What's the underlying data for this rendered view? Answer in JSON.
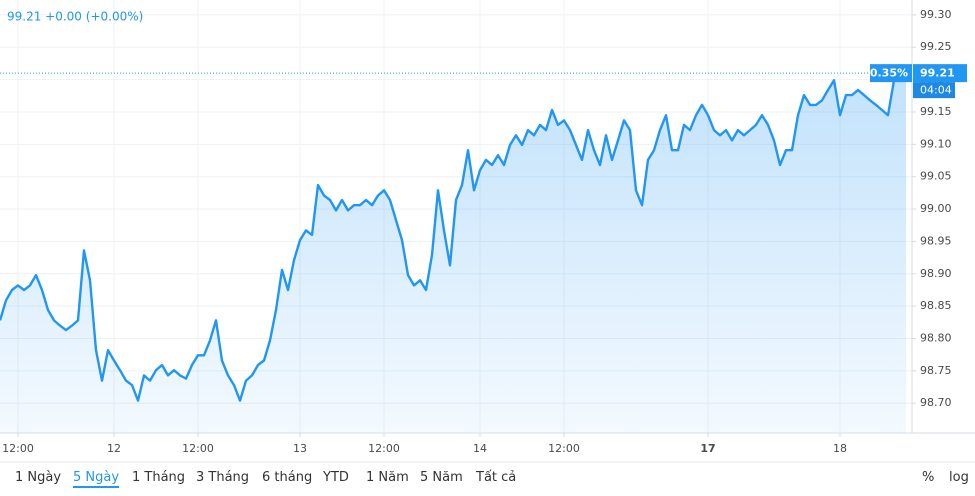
{
  "chart_data": {
    "type": "line",
    "title": "99.21 +0.00 (+0.00%)",
    "series": [
      {
        "color": "#2196f3",
        "values": [
          98.828,
          98.859,
          98.875,
          98.882,
          98.875,
          98.882,
          98.898,
          98.875,
          98.844,
          98.828,
          98.82,
          98.813,
          98.82,
          98.828,
          98.936,
          98.89,
          98.782,
          98.735,
          98.782,
          98.766,
          98.751,
          98.735,
          98.728,
          98.704,
          98.743,
          98.735,
          98.751,
          98.759,
          98.743,
          98.751,
          98.743,
          98.738,
          98.759,
          98.774,
          98.774,
          98.797,
          98.828,
          98.766,
          98.743,
          98.728,
          98.704,
          98.735,
          98.743,
          98.759,
          98.766,
          98.797,
          98.844,
          98.906,
          98.875,
          98.921,
          98.952,
          98.967,
          98.96,
          99.037,
          99.021,
          99.014,
          98.998,
          99.014,
          98.998,
          99.006,
          99.006,
          99.014,
          99.006,
          99.021,
          99.029,
          99.014,
          98.983,
          98.952,
          98.898,
          98.882,
          98.89,
          98.875,
          98.929,
          99.029,
          98.967,
          98.913,
          99.014,
          99.037,
          99.091,
          99.029,
          99.06,
          99.076,
          99.068,
          99.083,
          99.068,
          99.099,
          99.114,
          99.099,
          99.122,
          99.114,
          99.13,
          99.122,
          99.153,
          99.13,
          99.137,
          99.122,
          99.099,
          99.076,
          99.122,
          99.091,
          99.068,
          99.114,
          99.076,
          99.106,
          99.137,
          99.122,
          99.029,
          99.006,
          99.076,
          99.091,
          99.122,
          99.145,
          99.091,
          99.091,
          99.13,
          99.122,
          99.145,
          99.161,
          99.145,
          99.122,
          99.114,
          99.122,
          99.106,
          99.122,
          99.114,
          99.122,
          99.13,
          99.145,
          99.13,
          99.106,
          99.068,
          99.091,
          99.091,
          99.145,
          99.176,
          99.161,
          99.161,
          99.168,
          99.184,
          99.199,
          99.145,
          99.176,
          99.176,
          99.184,
          99.176,
          99.168,
          99.161,
          99.153,
          99.145,
          99.199,
          99.222,
          99.207
        ]
      }
    ],
    "xlim": [
      0,
      152
    ],
    "xticks": [
      {
        "value": 3,
        "label": "12:00"
      },
      {
        "value": 19,
        "label": "12"
      },
      {
        "value": 33,
        "label": "12:00"
      },
      {
        "value": 50,
        "label": "13"
      },
      {
        "value": 64,
        "label": "12:00"
      },
      {
        "value": 80,
        "label": "14"
      },
      {
        "value": 94,
        "label": "12:00"
      },
      {
        "value": 118,
        "label": "17",
        "bold": true
      },
      {
        "value": 140,
        "label": "18"
      }
    ],
    "ylim": [
      98.654,
      99.323
    ],
    "yticks": [
      {
        "value": 98.7,
        "label": "98.70"
      },
      {
        "value": 98.75,
        "label": "98.75"
      },
      {
        "value": 98.8,
        "label": "98.80"
      },
      {
        "value": 98.85,
        "label": "98.85"
      },
      {
        "value": 98.9,
        "label": "98.90"
      },
      {
        "value": 98.95,
        "label": "98.95"
      },
      {
        "value": 99.0,
        "label": "99.00"
      },
      {
        "value": 99.05,
        "label": "99.05"
      },
      {
        "value": 99.1,
        "label": "99.10"
      },
      {
        "value": 99.15,
        "label": "99.15"
      },
      {
        "value": 99.2,
        "label": "99.20"
      },
      {
        "value": 99.25,
        "label": "99.25"
      },
      {
        "value": 99.3,
        "label": "99.30"
      }
    ],
    "grid": true,
    "last_price": 99.21,
    "change_label": "0.35%",
    "countdown": "04:04"
  },
  "toolbar": {
    "ranges": [
      "1 Ngày",
      "5 Ngày",
      "1 Tháng",
      "3 Tháng",
      "6 tháng",
      "YTD",
      "1 Năm",
      "5 Năm",
      "Tất cả"
    ],
    "options": [
      "%",
      "log"
    ]
  }
}
